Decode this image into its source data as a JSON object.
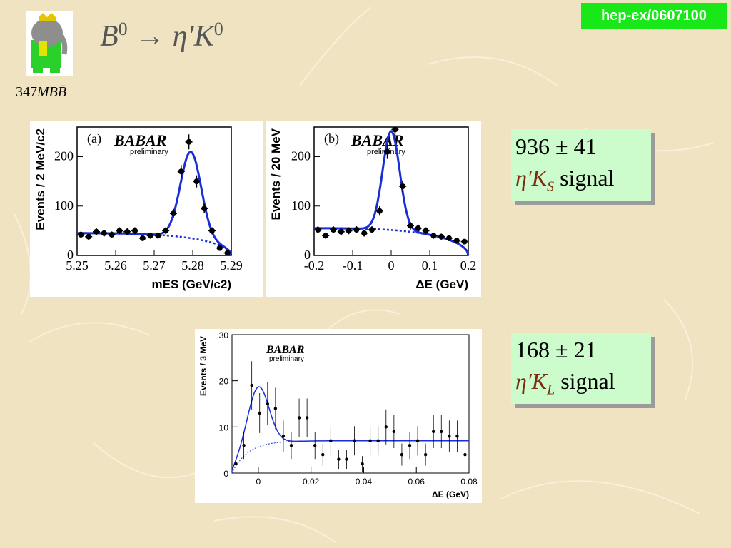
{
  "tag": "hep-ex/0607100",
  "luminosity": {
    "number": "347",
    "unit_text": "MBB̄"
  },
  "title": {
    "b": "B",
    "b_sup": "0",
    "arrow": "→",
    "etap": "η′",
    "k": "K",
    "k_sup": "0"
  },
  "box1": {
    "value": "936 ± 41",
    "particle": "η'K",
    "sub": "S",
    "word": "signal"
  },
  "box2": {
    "value": "168 ± 21",
    "particle": "η'K",
    "sub": "L",
    "word": "signal"
  },
  "colors": {
    "fit": "#1a2ed6",
    "tag_bg": "#18e818",
    "box_bg": "#ccfccc"
  },
  "chart_data": [
    {
      "type": "scatter",
      "panel_label": "(a)",
      "logo": "BABAR",
      "logo_sub": "preliminary",
      "xlabel": "mES (GeV/c2)",
      "ylabel": "Events / 2 MeV/c2",
      "xlim": [
        5.25,
        5.29
      ],
      "ylim": [
        0,
        260
      ],
      "xticks": [
        "5.25",
        "5.26",
        "5.27",
        "5.28",
        "5.29"
      ],
      "yticks": [
        "0",
        "100",
        "200"
      ],
      "x": [
        5.251,
        5.253,
        5.255,
        5.257,
        5.259,
        5.261,
        5.263,
        5.265,
        5.267,
        5.269,
        5.271,
        5.273,
        5.275,
        5.277,
        5.279,
        5.281,
        5.283,
        5.285,
        5.287,
        5.289
      ],
      "y": [
        42,
        38,
        48,
        45,
        42,
        50,
        48,
        50,
        35,
        40,
        40,
        50,
        85,
        170,
        230,
        150,
        95,
        50,
        15,
        5
      ],
      "fit_peak": {
        "mean": 5.2795,
        "sigma": 0.0027,
        "amplitude": 175,
        "bkg_at_start": 45
      }
    },
    {
      "type": "scatter",
      "panel_label": "(b)",
      "logo": "BABAR",
      "logo_sub": "preliminary",
      "xlabel": "ΔE (GeV)",
      "ylabel": "Events / 20 MeV",
      "xlim": [
        -0.2,
        0.2
      ],
      "ylim": [
        0,
        260
      ],
      "xticks": [
        "-0.2",
        "-0.1",
        "0",
        "0.1",
        "0.2"
      ],
      "yticks": [
        "0",
        "100",
        "200"
      ],
      "x": [
        -0.19,
        -0.17,
        -0.15,
        -0.13,
        -0.11,
        -0.09,
        -0.07,
        -0.05,
        -0.03,
        -0.01,
        0.01,
        0.03,
        0.05,
        0.07,
        0.09,
        0.11,
        0.13,
        0.15,
        0.17,
        0.19
      ],
      "y": [
        52,
        40,
        52,
        48,
        50,
        52,
        45,
        52,
        90,
        210,
        255,
        140,
        60,
        55,
        50,
        40,
        38,
        35,
        30,
        28
      ],
      "fit_peak": {
        "mean": 0.0,
        "sigma": 0.022,
        "amplitude": 200,
        "bkg_at_start": 55
      }
    },
    {
      "type": "scatter",
      "logo": "BABAR",
      "logo_sub": "preliminary",
      "xlabel": "ΔE (GeV)",
      "ylabel": "Events / 3 MeV",
      "xlim": [
        -0.01,
        0.08
      ],
      "ylim": [
        0,
        30
      ],
      "xticks": [
        "0",
        "0.02",
        "0.04",
        "0.06",
        "0.08"
      ],
      "yticks": [
        "0",
        "10",
        "20",
        "30"
      ],
      "x": [
        -0.0085,
        -0.0055,
        -0.0025,
        0.0005,
        0.0035,
        0.0065,
        0.0095,
        0.0125,
        0.0155,
        0.0185,
        0.0215,
        0.0245,
        0.0275,
        0.0305,
        0.0335,
        0.0365,
        0.0395,
        0.0425,
        0.0455,
        0.0485,
        0.0515,
        0.0545,
        0.0575,
        0.0605,
        0.0635,
        0.0665,
        0.0695,
        0.0725,
        0.0755,
        0.0785
      ],
      "y": [
        2,
        6,
        19,
        13,
        15,
        14,
        8,
        6,
        12,
        12,
        6,
        4,
        7,
        3,
        3,
        7,
        2,
        7,
        7,
        10,
        9,
        4,
        6,
        7,
        4,
        9,
        9,
        8,
        8,
        4
      ],
      "fit_peak": {
        "mean": 0.0,
        "sigma": 0.004,
        "amplitude": 13,
        "bkg_level": 7
      }
    }
  ]
}
